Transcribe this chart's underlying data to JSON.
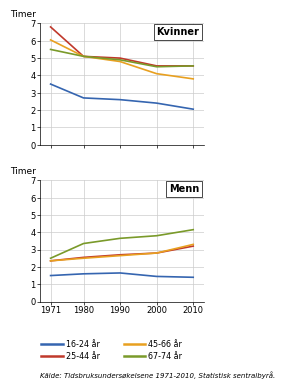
{
  "years": [
    1971,
    1980,
    1990,
    2000,
    2010
  ],
  "kvinner": {
    "16-24": [
      3.5,
      2.7,
      2.6,
      2.4,
      2.05
    ],
    "25-44": [
      6.8,
      5.1,
      5.0,
      4.55,
      4.55
    ],
    "45-66": [
      6.05,
      5.1,
      4.8,
      4.1,
      3.8
    ],
    "67-74": [
      5.5,
      5.1,
      4.9,
      4.5,
      4.55
    ]
  },
  "menn": {
    "16-24": [
      1.5,
      1.6,
      1.65,
      1.45,
      1.4
    ],
    "25-44": [
      2.35,
      2.55,
      2.7,
      2.8,
      3.2
    ],
    "45-66": [
      2.35,
      2.5,
      2.65,
      2.8,
      3.3
    ],
    "67-74": [
      2.5,
      3.35,
      3.65,
      3.8,
      4.15
    ]
  },
  "colors": {
    "16-24": "#3565b0",
    "25-44": "#c0392b",
    "45-66": "#e8a020",
    "67-74": "#7a9a2a"
  },
  "labels": {
    "16-24": "16-24 år",
    "25-44": "25-44 år",
    "45-66": "45-66 år",
    "67-74": "67-74 år"
  },
  "ytimer": "Timer",
  "kvinner_label": "Kvinner",
  "menn_label": "Menn",
  "source": "Kälde: Tidsbruksundersøkelsene 1971-2010, Statistisk sentralbyrå.",
  "ylim": [
    0,
    7
  ],
  "yticks": [
    0,
    1,
    2,
    3,
    4,
    5,
    6,
    7
  ],
  "xticks": [
    1971,
    1980,
    1990,
    2000,
    2010
  ],
  "background": "#ffffff",
  "grid_color": "#cccccc"
}
